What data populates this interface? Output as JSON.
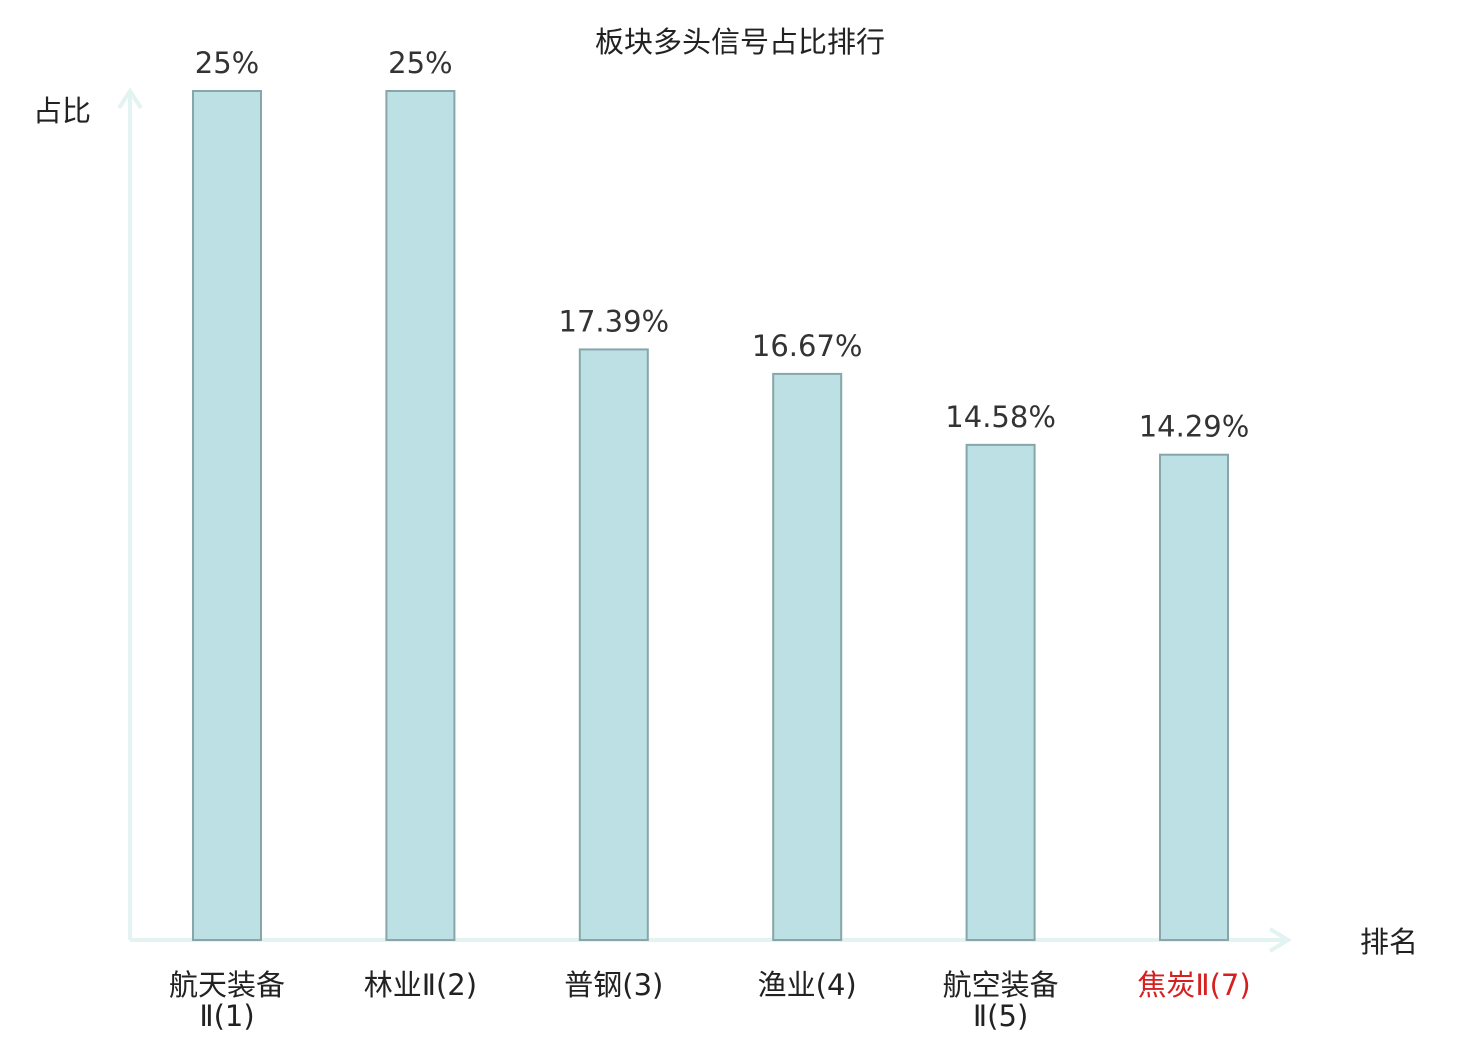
{
  "chart_data": {
    "type": "bar",
    "title": "板块多头信号占比排行",
    "xlabel": "排名",
    "ylabel": "占比",
    "ylim": [
      0,
      25
    ],
    "grid": false,
    "categories": [
      {
        "name": "航天装备",
        "rank": "Ⅱ(1)",
        "highlight": false
      },
      {
        "name": "林业",
        "rank": "Ⅱ(2)",
        "highlight": false
      },
      {
        "name": "普钢",
        "rank": "(3)",
        "highlight": false
      },
      {
        "name": "渔业",
        "rank": "(4)",
        "highlight": false
      },
      {
        "name": "航空装备",
        "rank": "Ⅱ(5)",
        "highlight": false
      },
      {
        "name": "焦炭",
        "rank": "Ⅱ(7)",
        "highlight": true
      }
    ],
    "values": [
      25,
      25,
      17.39,
      16.67,
      14.58,
      14.29
    ],
    "value_labels": [
      "25%",
      "25%",
      "17.39%",
      "16.67%",
      "14.58%",
      "14.29%"
    ],
    "colors": {
      "bar_fill": "#bce0e3",
      "bar_stroke": "#86a6a9",
      "axis": "#e2f3f1",
      "text": "#222222",
      "highlight": "#d62020"
    }
  }
}
